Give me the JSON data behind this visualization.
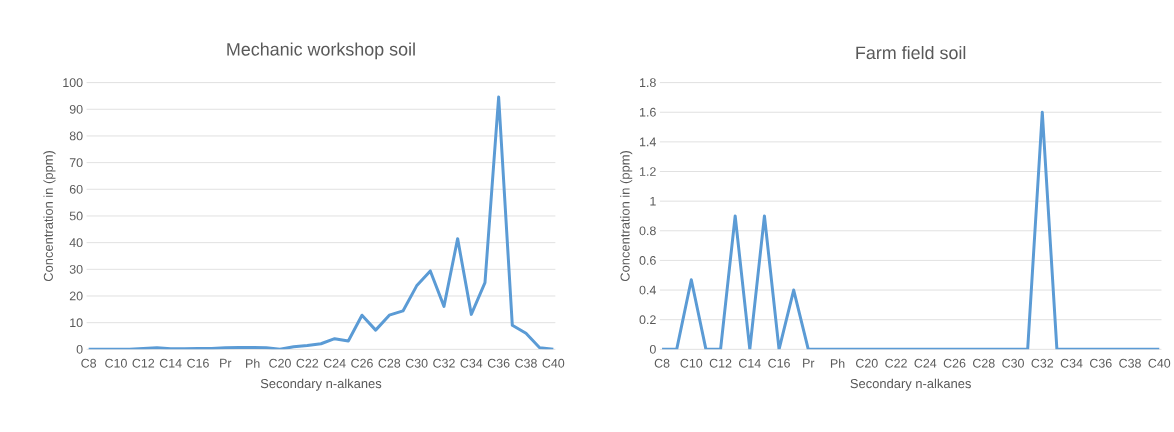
{
  "chart_data": [
    {
      "type": "line",
      "title": "Mechanic workshop soil",
      "xlabel": "Secondary n-alkanes",
      "ylabel": "Concentration in (ppm)",
      "categories": [
        "C8",
        null,
        "C10",
        null,
        "C12",
        null,
        "C14",
        null,
        "C16",
        null,
        "Pr",
        null,
        "Ph",
        null,
        "C20",
        null,
        "C22",
        null,
        "C24",
        null,
        "C26",
        null,
        "C28",
        null,
        "C30",
        null,
        "C32",
        null,
        "C34",
        null,
        "C36",
        null,
        "C38",
        null,
        "C40"
      ],
      "series": [
        {
          "color": "#5b9bd5",
          "values": [
            0,
            0,
            0,
            0,
            0.3,
            0.6,
            0.2,
            0.2,
            0.3,
            0.3,
            0.6,
            0.7,
            0.7,
            0.6,
            0,
            1,
            1.4,
            2.1,
            4,
            3.1,
            12.8,
            7.2,
            12.8,
            14.4,
            23.8,
            29.4,
            16.1,
            41.5,
            13.1,
            25,
            94.6,
            9,
            6,
            0.6,
            0
          ]
        }
      ],
      "ylim": [
        0,
        100
      ],
      "yticks": [
        0,
        10,
        20,
        30,
        40,
        50,
        60,
        70,
        80,
        90,
        100
      ],
      "grid": "y"
    },
    {
      "type": "line",
      "title": "Farm field soil",
      "xlabel": "Secondary n-alkanes",
      "ylabel": "Concentration in (ppm)",
      "categories": [
        "C8",
        null,
        "C10",
        null,
        "C12",
        null,
        "C14",
        null,
        "C16",
        null,
        "Pr",
        null,
        "Ph",
        null,
        "C20",
        null,
        "C22",
        null,
        "C24",
        null,
        "C26",
        null,
        "C28",
        null,
        "C30",
        null,
        "C32",
        null,
        "C34",
        null,
        "C36",
        null,
        "C38",
        null,
        "C40"
      ],
      "series": [
        {
          "color": "#5b9bd5",
          "values": [
            0,
            0,
            0.47,
            0,
            0,
            0.9,
            0,
            0.9,
            0,
            0.4,
            0,
            0,
            0,
            0,
            0,
            0,
            0,
            0,
            0,
            0,
            0,
            0,
            0,
            0,
            0,
            0,
            1.6,
            0,
            0,
            0,
            0,
            0,
            0,
            0,
            0
          ]
        }
      ],
      "ylim": [
        0,
        1.8
      ],
      "yticks": [
        0,
        0.2,
        0.4,
        0.6,
        0.8,
        1,
        1.2,
        1.4,
        1.6,
        1.8
      ],
      "grid": "y"
    }
  ]
}
